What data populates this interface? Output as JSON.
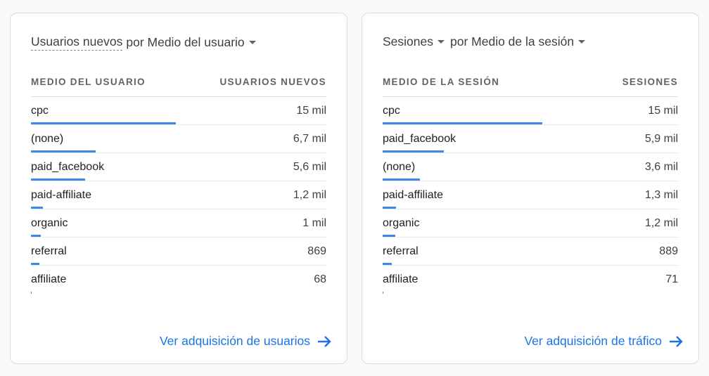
{
  "accent_color": "#1a73e8",
  "cards": [
    {
      "title_metric": "Usuarios nuevos",
      "title_dimension": "por Medio del usuario",
      "metric_dropdown": false,
      "col_dimension": "MEDIO DEL USUARIO",
      "col_metric": "USUARIOS NUEVOS",
      "rows": [
        {
          "label": "cpc",
          "value": "15 mil",
          "share": 0.49
        },
        {
          "label": "(none)",
          "value": "6,7 mil",
          "share": 0.22
        },
        {
          "label": "paid_facebook",
          "value": "5,6 mil",
          "share": 0.184
        },
        {
          "label": "paid-affiliate",
          "value": "1,2 mil",
          "share": 0.04
        },
        {
          "label": "organic",
          "value": "1 mil",
          "share": 0.033
        },
        {
          "label": "referral",
          "value": "869",
          "share": 0.029
        },
        {
          "label": "affiliate",
          "value": "68",
          "share": 0.002
        }
      ],
      "link": "Ver adquisición de usuarios"
    },
    {
      "title_metric": "Sesiones",
      "title_dimension": "por Medio de la sesión",
      "metric_dropdown": true,
      "col_dimension": "MEDIO DE LA SESIÓN",
      "col_metric": "SESIONES",
      "rows": [
        {
          "label": "cpc",
          "value": "15 mil",
          "share": 0.54
        },
        {
          "label": "paid_facebook",
          "value": "5,9 mil",
          "share": 0.207
        },
        {
          "label": "(none)",
          "value": "3,6 mil",
          "share": 0.127
        },
        {
          "label": "paid-affiliate",
          "value": "1,3 mil",
          "share": 0.046
        },
        {
          "label": "organic",
          "value": "1,2 mil",
          "share": 0.043
        },
        {
          "label": "referral",
          "value": "889",
          "share": 0.032
        },
        {
          "label": "affiliate",
          "value": "71",
          "share": 0.003
        }
      ],
      "link": "Ver adquisición de tráfico"
    }
  ]
}
